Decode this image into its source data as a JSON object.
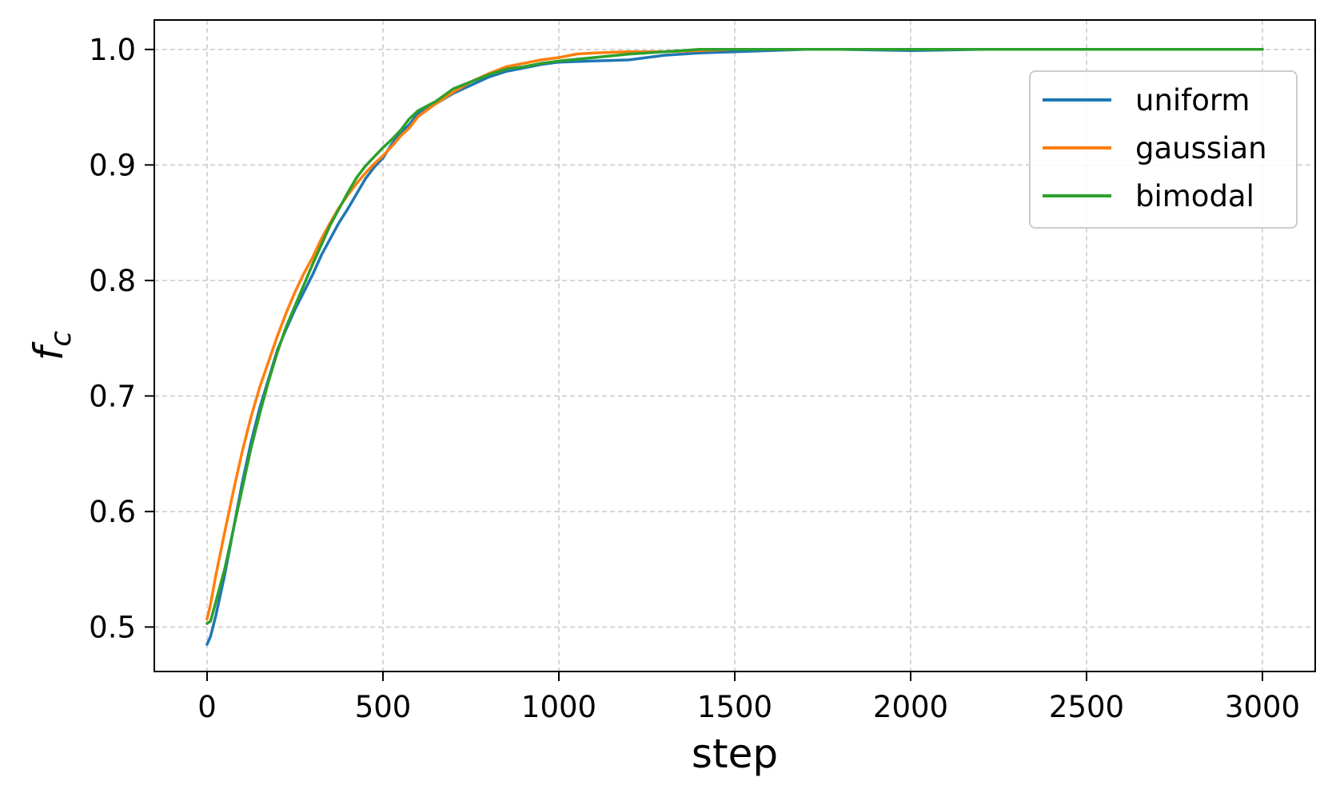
{
  "chart_data": {
    "type": "line",
    "title": "",
    "xlabel": "step",
    "ylabel": "f_c",
    "xlim": [
      -150,
      3150
    ],
    "ylim": [
      0.4615,
      1.0255
    ],
    "xticks": [
      0,
      500,
      1000,
      1500,
      2000,
      2500,
      3000
    ],
    "xtick_labels": [
      "0",
      "500",
      "1000",
      "1500",
      "2000",
      "2500",
      "3000"
    ],
    "yticks": [
      0.5,
      0.6,
      0.7,
      0.8,
      0.9,
      1.0
    ],
    "ytick_labels": [
      "0.5",
      "0.6",
      "0.7",
      "0.8",
      "0.9",
      "1.0"
    ],
    "grid": true,
    "legend_position": "upper-right",
    "series": [
      {
        "name": "uniform",
        "color": "#1f77b4",
        "x": [
          0,
          10,
          25,
          50,
          75,
          100,
          125,
          150,
          175,
          200,
          225,
          250,
          275,
          300,
          325,
          350,
          375,
          400,
          425,
          450,
          475,
          500,
          525,
          550,
          575,
          600,
          650,
          700,
          750,
          800,
          850,
          900,
          950,
          1000,
          1100,
          1200,
          1300,
          1400,
          1500,
          1600,
          1700,
          1800,
          2000,
          2200,
          2500,
          3000
        ],
        "y": [
          0.485,
          0.492,
          0.51,
          0.545,
          0.585,
          0.625,
          0.66,
          0.69,
          0.715,
          0.74,
          0.758,
          0.775,
          0.79,
          0.805,
          0.822,
          0.836,
          0.85,
          0.862,
          0.875,
          0.888,
          0.898,
          0.906,
          0.918,
          0.928,
          0.935,
          0.945,
          0.953,
          0.962,
          0.969,
          0.976,
          0.981,
          0.984,
          0.987,
          0.989,
          0.99,
          0.991,
          0.995,
          0.997,
          0.998,
          0.999,
          1.0,
          1.0,
          0.999,
          1.0,
          1.0,
          1.0
        ]
      },
      {
        "name": "gaussian",
        "color": "#ff7f0e",
        "x": [
          0,
          10,
          25,
          50,
          75,
          100,
          125,
          150,
          175,
          200,
          225,
          250,
          275,
          300,
          325,
          350,
          375,
          400,
          425,
          450,
          475,
          500,
          525,
          550,
          575,
          600,
          650,
          700,
          750,
          800,
          850,
          900,
          950,
          1000,
          1050,
          1100,
          1200,
          1300,
          1400,
          1500,
          2000,
          2500,
          3000
        ],
        "y": [
          0.507,
          0.52,
          0.545,
          0.582,
          0.618,
          0.652,
          0.682,
          0.708,
          0.73,
          0.752,
          0.772,
          0.79,
          0.806,
          0.82,
          0.836,
          0.85,
          0.863,
          0.874,
          0.884,
          0.893,
          0.901,
          0.908,
          0.916,
          0.925,
          0.932,
          0.942,
          0.953,
          0.963,
          0.972,
          0.979,
          0.985,
          0.988,
          0.991,
          0.993,
          0.996,
          0.997,
          0.998,
          0.998,
          0.999,
          1.0,
          1.0,
          1.0,
          1.0
        ]
      },
      {
        "name": "bimodal",
        "color": "#2ca02c",
        "x": [
          0,
          10,
          25,
          50,
          75,
          100,
          125,
          150,
          175,
          200,
          225,
          250,
          275,
          300,
          325,
          350,
          375,
          400,
          425,
          450,
          475,
          500,
          525,
          550,
          575,
          600,
          650,
          700,
          750,
          800,
          850,
          900,
          950,
          1000,
          1100,
          1200,
          1300,
          1400,
          1500,
          2000,
          2500,
          3000
        ],
        "y": [
          0.503,
          0.505,
          0.522,
          0.55,
          0.585,
          0.62,
          0.655,
          0.685,
          0.713,
          0.738,
          0.76,
          0.778,
          0.796,
          0.814,
          0.831,
          0.848,
          0.862,
          0.876,
          0.889,
          0.899,
          0.907,
          0.915,
          0.922,
          0.93,
          0.94,
          0.947,
          0.955,
          0.966,
          0.972,
          0.978,
          0.983,
          0.985,
          0.988,
          0.99,
          0.993,
          0.996,
          0.998,
          1.0,
          1.0,
          1.0,
          1.0,
          1.0
        ]
      }
    ]
  }
}
